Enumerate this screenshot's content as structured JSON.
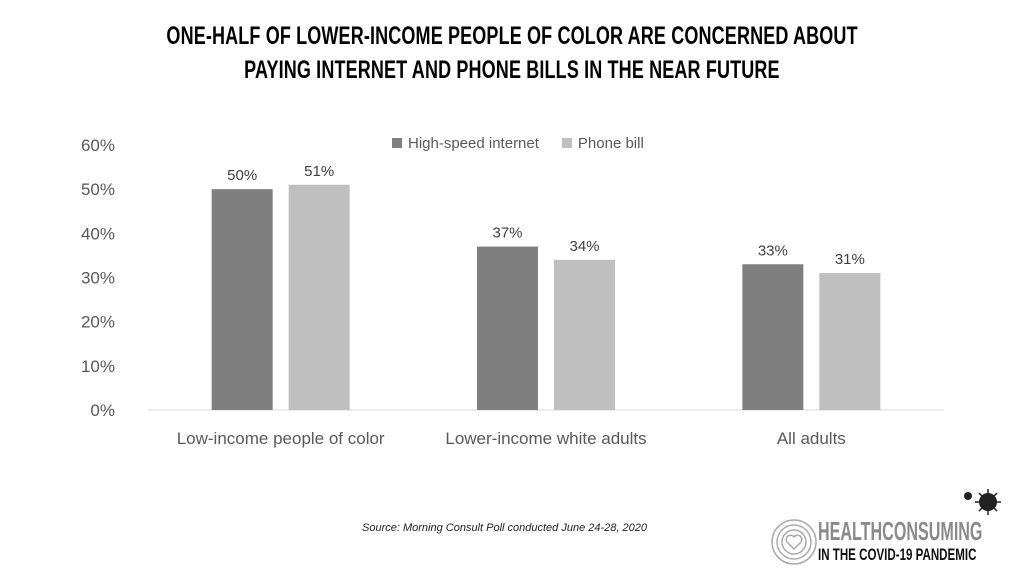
{
  "chart_data": {
    "type": "bar",
    "title": "ONE-HALF OF LOWER-INCOME PEOPLE OF COLOR ARE CONCERNED ABOUT PAYING INTERNET AND PHONE BILLS IN THE NEAR FUTURE",
    "title_lines": [
      "ONE-HALF OF LOWER-INCOME PEOPLE OF COLOR ARE CONCERNED ABOUT",
      "PAYING INTERNET AND PHONE BILLS IN THE NEAR FUTURE"
    ],
    "categories": [
      "Low-income people of color",
      "Lower-income white adults",
      "All adults"
    ],
    "series": [
      {
        "name": "High-speed internet",
        "color": "#7f7f7f",
        "values": [
          50,
          37,
          33
        ],
        "labels": [
          "50%",
          "37%",
          "33%"
        ]
      },
      {
        "name": "Phone bill",
        "color": "#bfbfbf",
        "values": [
          51,
          34,
          31
        ],
        "labels": [
          "51%",
          "34%",
          "31%"
        ]
      }
    ],
    "ylim": [
      0,
      60
    ],
    "yticks": [
      "0%",
      "10%",
      "20%",
      "30%",
      "40%",
      "50%",
      "60%"
    ],
    "xlabel": "",
    "ylabel": "",
    "grid": false,
    "legend": "top-center",
    "source": "Source: Morning Consult Poll conducted June 24-28, 2020"
  },
  "logo": {
    "line1": "HEALTHCONSUMING",
    "line2": "IN THE COVID-19 PANDEMIC"
  }
}
